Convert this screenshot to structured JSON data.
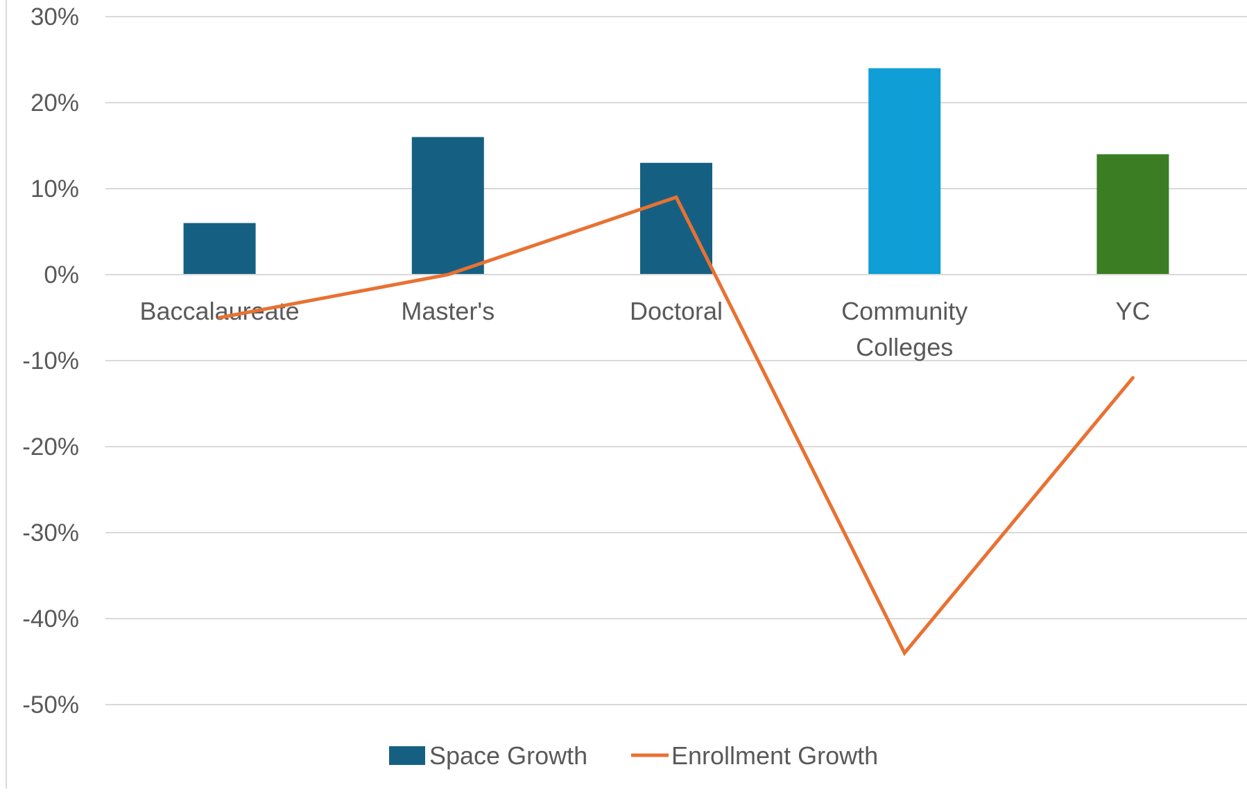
{
  "chart_data": {
    "type": "bar",
    "categories": [
      "Baccalaureate",
      "Master's",
      "Doctoral",
      "Community Colleges",
      "YC"
    ],
    "category_lines": [
      [
        "Baccalaureate"
      ],
      [
        "Master's"
      ],
      [
        "Doctoral"
      ],
      [
        "Community",
        "Colleges"
      ],
      [
        "YC"
      ]
    ],
    "series": [
      {
        "name": "Space Growth",
        "type": "bar",
        "values": [
          0.06,
          0.16,
          0.13,
          0.24,
          0.14
        ],
        "color": "#156082",
        "point_colors": [
          "#156082",
          "#156082",
          "#156082",
          "#0F9ED5",
          "#3B7D23"
        ]
      },
      {
        "name": "Enrollment Growth",
        "type": "line",
        "values": [
          -0.05,
          0.0,
          0.09,
          -0.44,
          -0.12
        ],
        "color": "#E97132"
      }
    ],
    "ylim": [
      -0.5,
      0.3
    ],
    "yticks": [
      "30%",
      "20%",
      "10%",
      "0%",
      "-10%",
      "-20%",
      "-30%",
      "-40%",
      "-50%"
    ],
    "ytick_values": [
      0.3,
      0.2,
      0.1,
      0.0,
      -0.1,
      -0.2,
      -0.3,
      -0.4,
      -0.5
    ],
    "grid": true,
    "legend_position": "bottom",
    "title": "",
    "xlabel": "",
    "ylabel": ""
  }
}
